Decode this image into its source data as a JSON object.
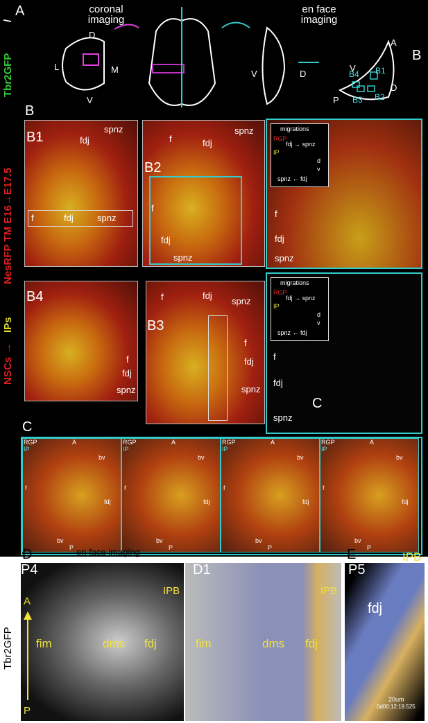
{
  "panel_a": {
    "letter": "A",
    "coronal": "coronal imaging",
    "en_face": "en face imaging",
    "coronal_axes": [
      "D",
      "L",
      "M",
      "V"
    ],
    "side_axes": [
      "V",
      "D"
    ],
    "enface_axes": [
      "A",
      "V",
      "D",
      "P"
    ],
    "b_letter": "B",
    "boxes": [
      "B4",
      "B1",
      "B3",
      "B2"
    ]
  },
  "side_label": {
    "tbr2": "Tbr2GFP",
    "slash": "/",
    "nes": "NesRFP TM E16→E17.5",
    "ips": "IPs",
    "arrow": "→",
    "nscs": "NSCs"
  },
  "panel_b": {
    "letter": "B",
    "b1": {
      "label": "B1",
      "inset": [
        "f",
        "fdj",
        "spnz"
      ],
      "main": [
        "f",
        "fdj",
        "spnz"
      ]
    },
    "b2": {
      "label": "B2",
      "inset": [
        "f",
        "fdj",
        "spnz"
      ],
      "main": [
        "f",
        "fdj",
        "spnz"
      ]
    },
    "b2_zoom": {
      "legend": {
        "title": "migrations",
        "rgp": "RGP",
        "ip": "IP",
        "row1": "fdj → spnz",
        "row2": "spnz ← fdj",
        "d": "d",
        "v": "v"
      },
      "main": [
        "f",
        "fdj",
        "spnz"
      ]
    },
    "b4": {
      "label": "B4",
      "main": [
        "f",
        "fdj",
        "spnz"
      ]
    },
    "b3": {
      "label": "B3",
      "inset": [
        "f",
        "fdj",
        "spnz"
      ],
      "main": [
        "f",
        "fdj",
        "spnz"
      ]
    },
    "c_zoom": {
      "label": "C",
      "legend": {
        "title": "migrations",
        "rgp": "RGP",
        "ip": "IP",
        "row1": "fdj → spnz",
        "row2": "spnz ← fdj",
        "d": "d",
        "v": "v"
      },
      "main": [
        "f",
        "fdj",
        "spnz"
      ]
    }
  },
  "panel_c": {
    "letter": "C",
    "frames": [
      {
        "rgp": "RGP",
        "ip": "IP",
        "a": "A",
        "bv_top": "bv",
        "bv_bottom": "bv",
        "f": "f",
        "fdj": "fdj",
        "p": "P"
      },
      {
        "rgp": "RGP",
        "ip": "IP",
        "a": "A",
        "bv_top": "bv",
        "bv_bottom": "bv",
        "f": "f",
        "fdj": "fdj",
        "p": "P"
      },
      {
        "rgp": "RGP",
        "ip": "IP",
        "a": "A",
        "bv_top": "bv",
        "bv_bottom": "bv",
        "f": "f",
        "fdj": "fdj",
        "p": "P"
      },
      {
        "rgp": "RGP",
        "ip": "IP",
        "a": "A",
        "bv_top": "bv",
        "bv_bottom": "bv",
        "f": "f",
        "fdj": "fdj",
        "p": "P"
      }
    ]
  },
  "panel_d": {
    "letter": "D",
    "title": "en face imaging",
    "age": "P4",
    "axis_a": "A",
    "axis_p": "P",
    "labels": [
      "fim",
      "dms",
      "fdj"
    ],
    "ipb": "IPB",
    "marker": "Tbr2GFP"
  },
  "panel_d1": {
    "letter": "D1",
    "labels": [
      "fim",
      "dms",
      "fdj"
    ],
    "ipb": "IPB"
  },
  "panel_e": {
    "letter": "E",
    "age": "P5",
    "ipb": "IPB",
    "fdj": "fdj",
    "scale": "20um",
    "time": "0d00:12:19.525"
  }
}
